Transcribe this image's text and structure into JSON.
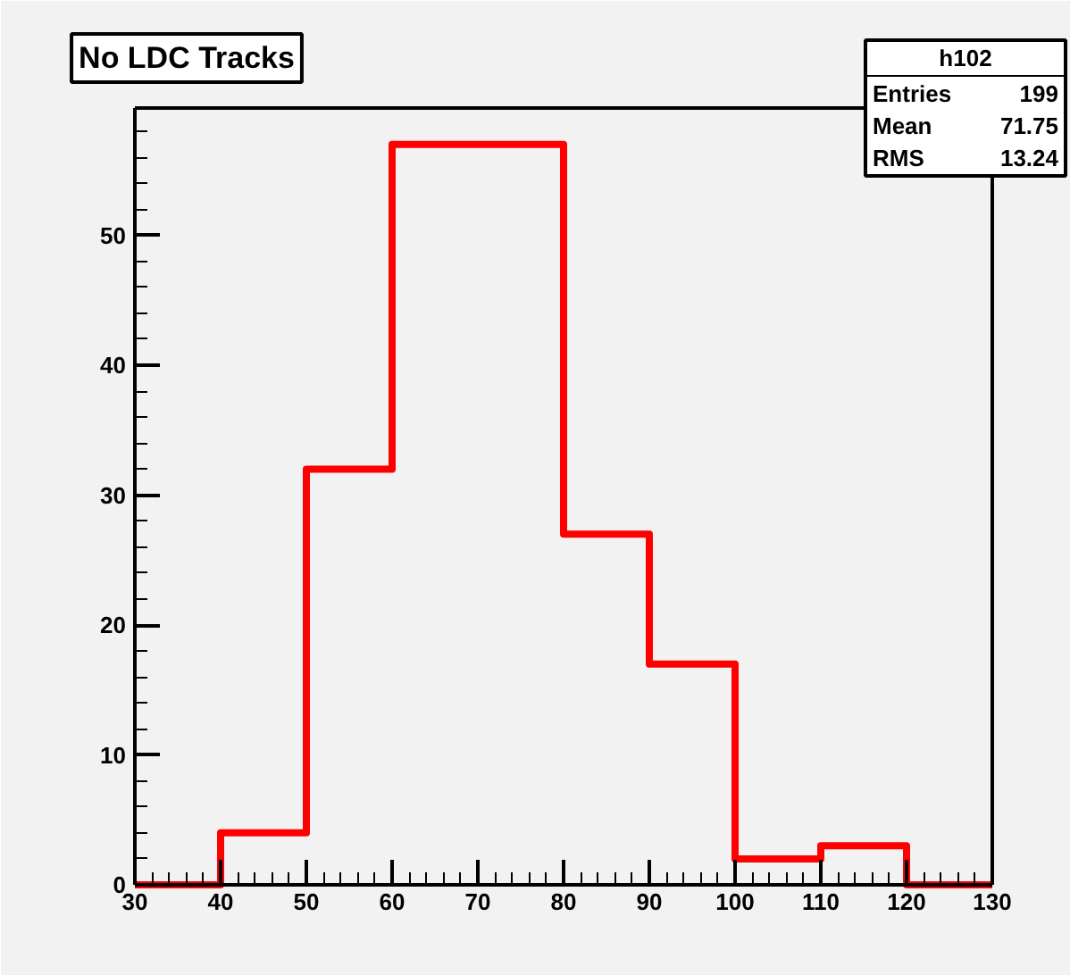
{
  "chart_data": {
    "type": "histogram",
    "title": "No LDC Tracks",
    "bins": [
      30,
      40,
      50,
      60,
      70,
      80,
      90,
      100,
      110,
      120,
      130
    ],
    "values": [
      0,
      4,
      32,
      57,
      57,
      27,
      17,
      2,
      3,
      0
    ],
    "color": "#ff0000",
    "xlim": [
      30,
      130
    ],
    "xticks": [
      30,
      40,
      50,
      60,
      70,
      80,
      90,
      100,
      110,
      120,
      130
    ],
    "ylim": [
      0,
      59.8
    ],
    "yticks": [
      0,
      10,
      20,
      30,
      40,
      50
    ],
    "annotations": [
      "h102",
      "Entries",
      "199",
      "Mean",
      "71.75",
      "RMS",
      "13.24"
    ]
  }
}
